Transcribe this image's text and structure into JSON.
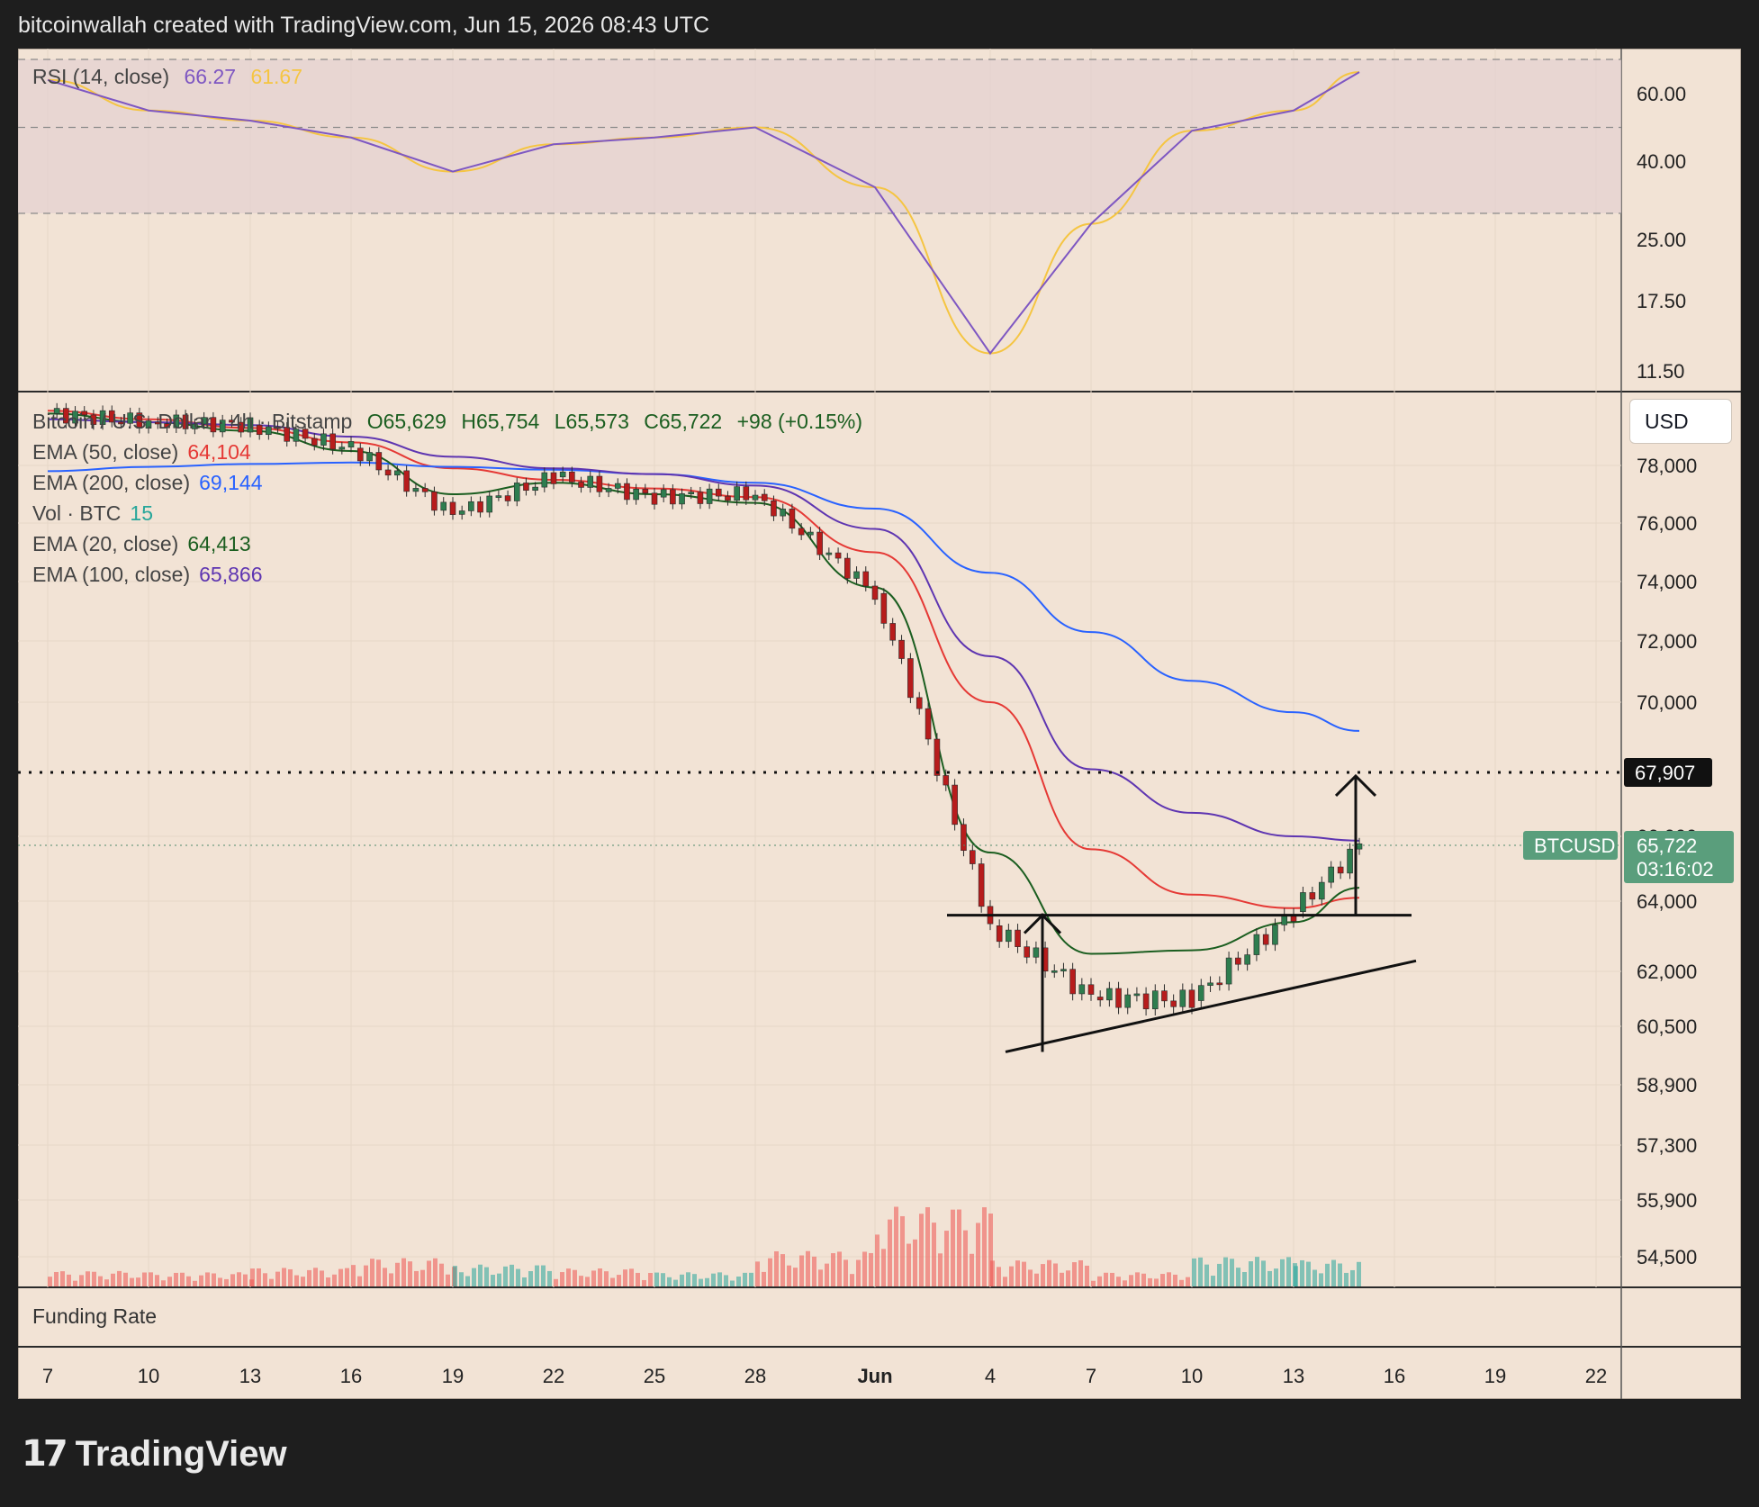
{
  "header": {
    "text": "bitcoinwallah created with TradingView.com, Jun 15, 2026 08:43 UTC"
  },
  "brand": {
    "mark": "17",
    "name": "TradingView"
  },
  "rsi_panel": {
    "label": "RSI (14, close)",
    "value": "66.27",
    "ma_value": "61.67",
    "ticks": [
      "60.00",
      "40.00",
      "25.00",
      "17.50",
      "11.50"
    ],
    "colors": {
      "rsi": "#7e57c2",
      "ma": "#f5c542",
      "band": "#e4d1d0"
    }
  },
  "price_panel": {
    "symbol_line": {
      "symbol": "Bitcoin / U.S. Dollar · 4h · Bitstamp",
      "open": "O65,629",
      "high": "H65,754",
      "low": "L65,573",
      "close": "C65,722",
      "change": "+98 (+0.15%)"
    },
    "indicators": [
      {
        "label": "EMA (50, close)",
        "value": "64,104",
        "color": "#e53935"
      },
      {
        "label": "EMA (200, close)",
        "value": "69,144",
        "color": "#2962ff"
      },
      {
        "label": "Vol · BTC",
        "value": "15",
        "color": "#26a69a"
      },
      {
        "label": "EMA (20, close)",
        "value": "64,413",
        "color": "#1b5e20"
      },
      {
        "label": "EMA (100, close)",
        "value": "65,866",
        "color": "#5e35b1"
      }
    ],
    "currency_button": "USD",
    "price_ticks": [
      "78,000",
      "76,000",
      "74,000",
      "72,000",
      "70,000",
      "66,000",
      "64,000",
      "62,000",
      "60,500",
      "58,900",
      "57,300",
      "55,900",
      "54,500"
    ],
    "target_level": {
      "value": "67,907"
    },
    "current_price": {
      "symbol": "BTCUSD",
      "value": "65,722",
      "countdown": "03:16:02"
    },
    "colors": {
      "up": "#26a69a",
      "down": "#ef5350",
      "candle_up": "#2e7d4f",
      "candle_down": "#b71c1c"
    }
  },
  "funding_panel": {
    "label": "Funding Rate"
  },
  "time_axis": {
    "ticks": [
      "7",
      "10",
      "13",
      "16",
      "19",
      "22",
      "25",
      "28",
      "Jun",
      "4",
      "7",
      "10",
      "13",
      "16",
      "19",
      "22"
    ]
  },
  "chart_data": {
    "type": "line",
    "title": "Bitcoin / U.S. Dollar · 4h · Bitstamp",
    "x": [
      "7",
      "10",
      "13",
      "16",
      "19",
      "22",
      "25",
      "28",
      "Jun 1",
      "4",
      "7",
      "10",
      "13",
      "15"
    ],
    "series": [
      {
        "name": "Close",
        "values": [
          79800,
          79500,
          79400,
          78600,
          76300,
          77600,
          76900,
          77000,
          73600,
          63300,
          61300,
          61200,
          63700,
          65722
        ]
      },
      {
        "name": "EMA (50, close)",
        "values": [
          79900,
          79600,
          79300,
          78800,
          77900,
          77500,
          77200,
          76900,
          75000,
          70000,
          65600,
          64200,
          63800,
          64104
        ]
      },
      {
        "name": "EMA (200, close)",
        "values": [
          77800,
          77950,
          78050,
          78100,
          77950,
          77850,
          77700,
          77400,
          76500,
          74300,
          72300,
          70700,
          69700,
          69144
        ]
      },
      {
        "name": "EMA (20, close)",
        "values": [
          79800,
          79500,
          79200,
          78500,
          77000,
          77400,
          77000,
          76700,
          73800,
          65500,
          62500,
          62600,
          63400,
          64413
        ]
      },
      {
        "name": "EMA (100, close)",
        "values": [
          79600,
          79500,
          79400,
          79000,
          78300,
          77900,
          77700,
          77300,
          75800,
          71500,
          68000,
          66700,
          66000,
          65866
        ]
      },
      {
        "name": "RSI (14, close)",
        "values": [
          64,
          55,
          52,
          47,
          38,
          45,
          47,
          50,
          35,
          13,
          28,
          49,
          55,
          66.27
        ]
      }
    ],
    "annotations": [
      {
        "type": "horizontal",
        "value": 67907,
        "label": "67,907"
      },
      {
        "type": "horizontal",
        "value": 63600,
        "from": "Jun 3",
        "to": "Jun 15"
      },
      {
        "type": "trendline",
        "from": {
          "x": "Jun 5",
          "y": 59800
        },
        "to": {
          "x": "Jun 16",
          "y": 62300
        }
      }
    ],
    "ylim": [
      54000,
      79500
    ]
  }
}
